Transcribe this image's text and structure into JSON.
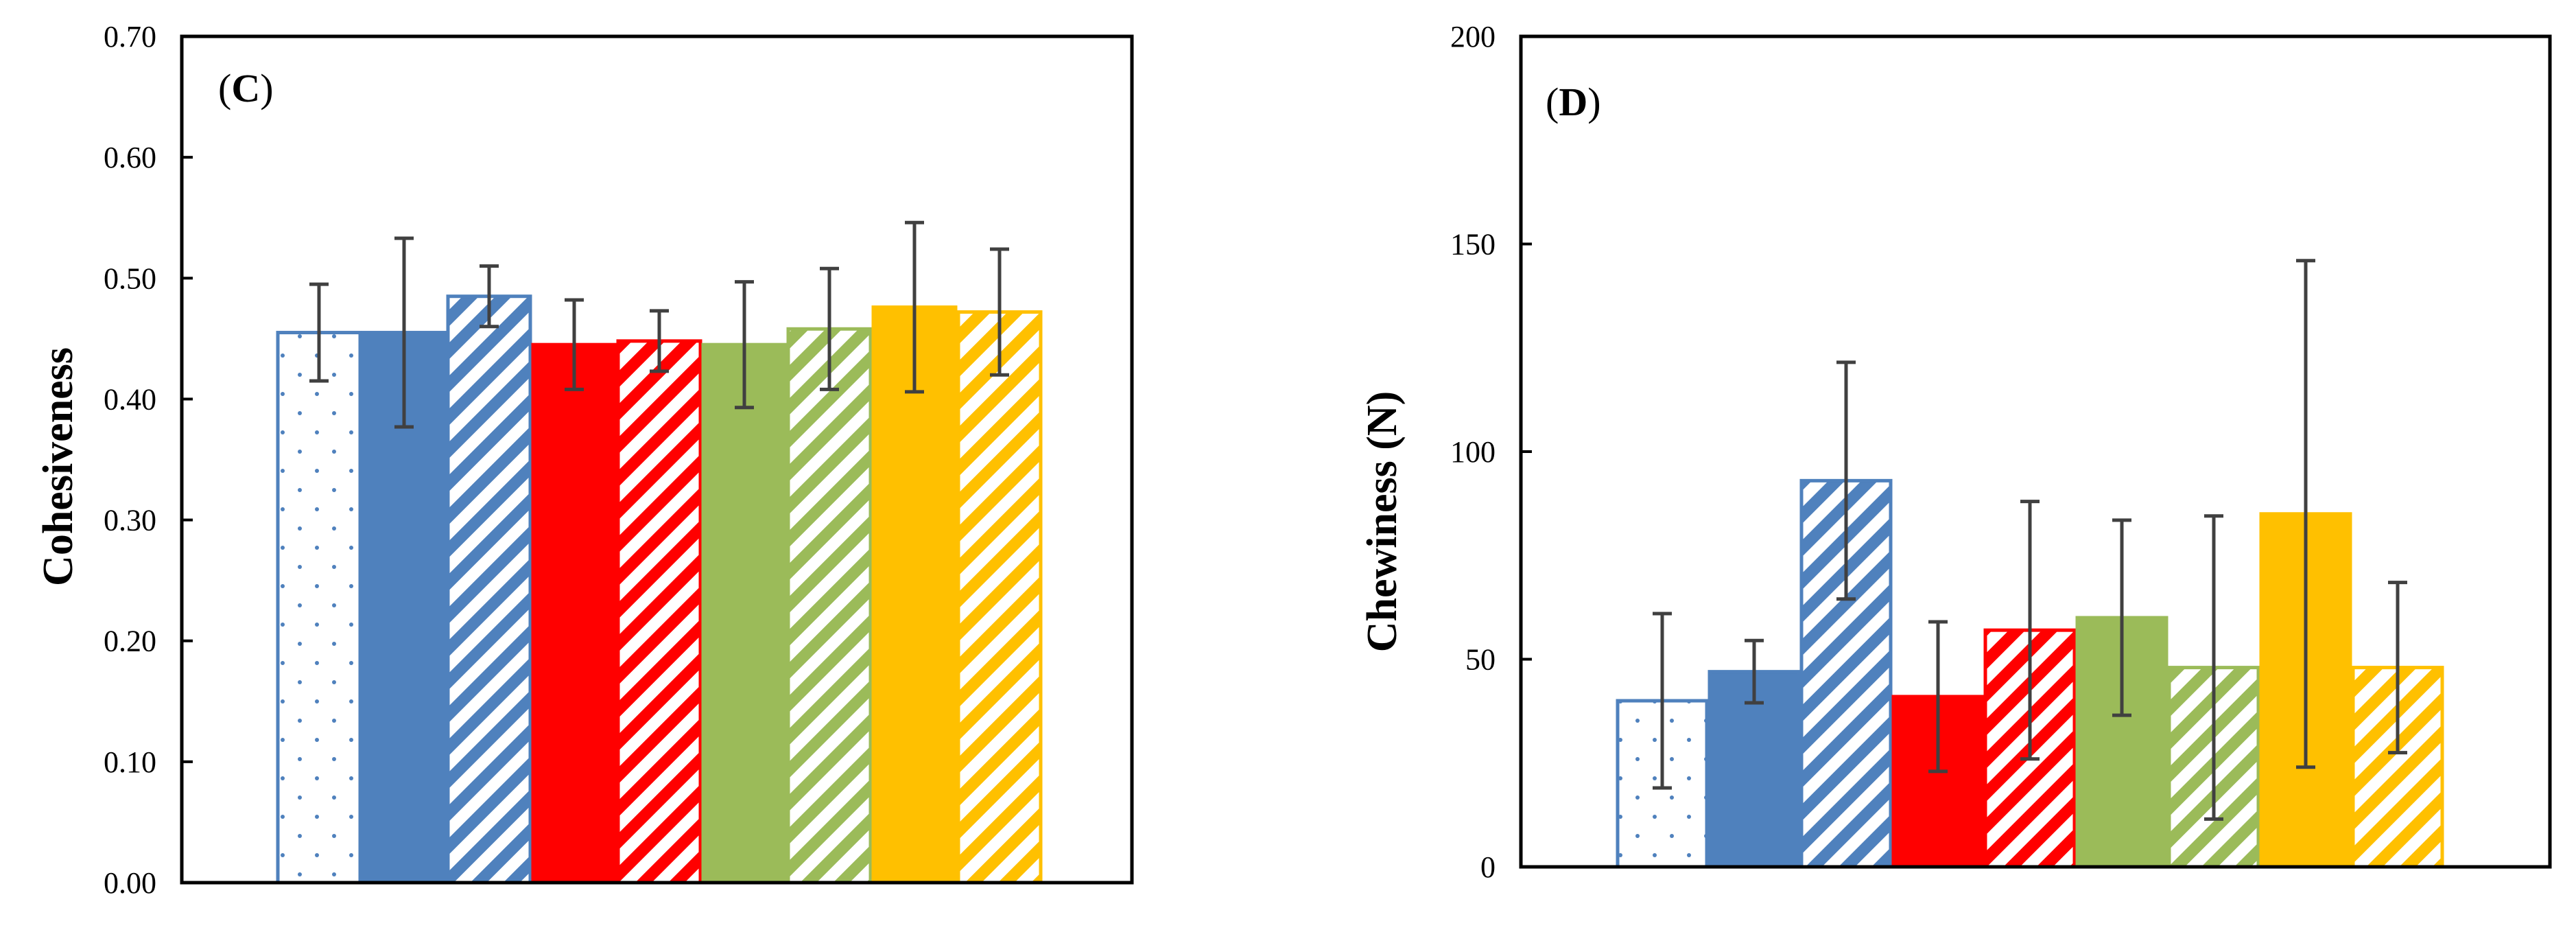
{
  "colors": {
    "blue": "#4f81bd",
    "red": "#ff0000",
    "green": "#9bbb59",
    "orange": "#ffc000",
    "axis": "#000000",
    "errorbar": "#404040"
  },
  "chart_data": [
    {
      "type": "bar",
      "panel_label": {
        "open": "(",
        "letter": "C",
        "close": ")"
      },
      "ylabel": "Cohesiveness",
      "xlabel": "",
      "ylim": [
        0,
        0.7
      ],
      "yticks": [
        "0.00",
        "0.10",
        "0.20",
        "0.30",
        "0.40",
        "0.50",
        "0.60",
        "0.70"
      ],
      "ytick_values": [
        0,
        0.1,
        0.2,
        0.3,
        0.4,
        0.5,
        0.6,
        0.7
      ],
      "grid": false,
      "bars": [
        {
          "value": 0.455,
          "error": 0.04,
          "color": "blue",
          "fill": "dots"
        },
        {
          "value": 0.455,
          "error": 0.078,
          "color": "blue",
          "fill": "solid"
        },
        {
          "value": 0.485,
          "error": 0.025,
          "color": "blue",
          "fill": "stripes"
        },
        {
          "value": 0.445,
          "error": 0.037,
          "color": "red",
          "fill": "solid"
        },
        {
          "value": 0.448,
          "error": 0.025,
          "color": "red",
          "fill": "stripes"
        },
        {
          "value": 0.445,
          "error": 0.052,
          "color": "green",
          "fill": "solid"
        },
        {
          "value": 0.458,
          "error": 0.05,
          "color": "green",
          "fill": "stripes"
        },
        {
          "value": 0.476,
          "error": 0.07,
          "color": "orange",
          "fill": "solid"
        },
        {
          "value": 0.472,
          "error": 0.052,
          "color": "orange",
          "fill": "stripes"
        }
      ]
    },
    {
      "type": "bar",
      "panel_label": {
        "open": "(",
        "letter": "D",
        "close": ")"
      },
      "ylabel": "Chewiness (N)",
      "xlabel": "",
      "ylim": [
        0,
        200
      ],
      "yticks": [
        "0",
        "50",
        "100",
        "150",
        "200"
      ],
      "ytick_values": [
        0,
        50,
        100,
        150,
        200
      ],
      "grid": false,
      "bars": [
        {
          "value": 40,
          "error": 21,
          "color": "blue",
          "fill": "dots"
        },
        {
          "value": 47,
          "error": 7.5,
          "color": "blue",
          "fill": "solid"
        },
        {
          "value": 93,
          "error": 28.5,
          "color": "blue",
          "fill": "stripes"
        },
        {
          "value": 41,
          "error": 18,
          "color": "red",
          "fill": "solid"
        },
        {
          "value": 57,
          "error": 31,
          "color": "red",
          "fill": "stripes"
        },
        {
          "value": 60,
          "error": 23.5,
          "color": "green",
          "fill": "solid"
        },
        {
          "value": 48,
          "error": 36.5,
          "color": "green",
          "fill": "stripes"
        },
        {
          "value": 85,
          "error": 61,
          "color": "orange",
          "fill": "solid"
        },
        {
          "value": 48,
          "error": 20.5,
          "color": "orange",
          "fill": "stripes"
        }
      ]
    }
  ]
}
